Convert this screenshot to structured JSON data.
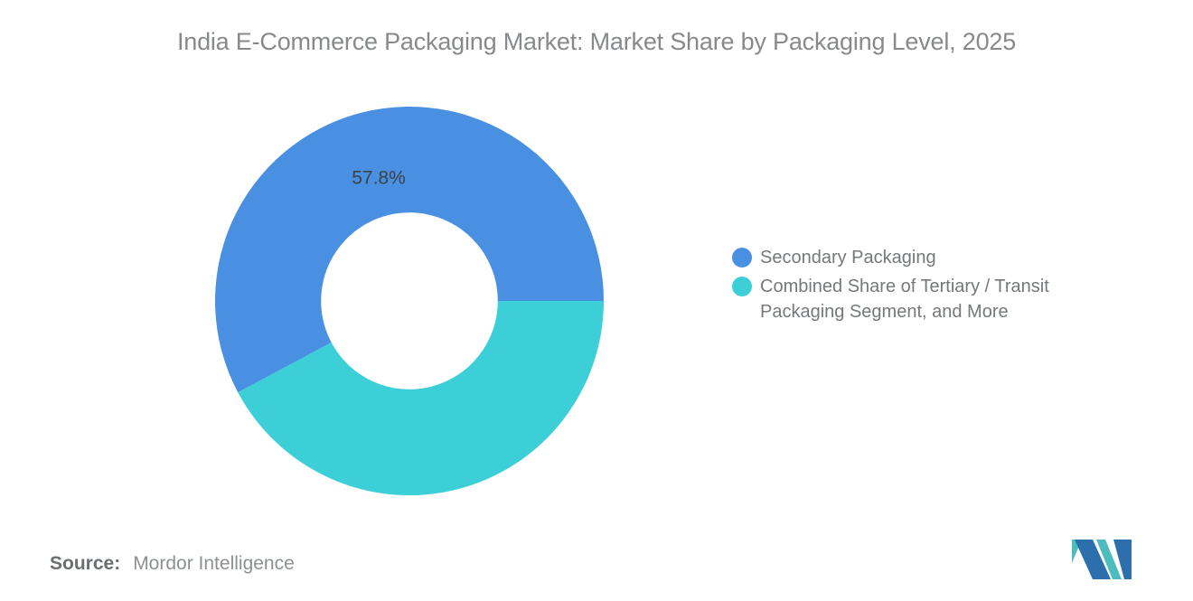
{
  "title": "India E-Commerce Packaging Market: Market Share by Packaging Level, 2025",
  "chart_data": {
    "type": "pie",
    "subtype": "donut",
    "title": "India E-Commerce Packaging Market: Market Share by Packaging Level, 2025",
    "series": [
      {
        "name": "Secondary Packaging",
        "value": 57.8,
        "label": "57.8%",
        "color": "#4a90e2"
      },
      {
        "name": "Combined Share of Tertiary / Transit Packaging Segment, and More",
        "value": 42.2,
        "label": null,
        "color": "#3ccfd8"
      }
    ],
    "start_angle_deg": 0,
    "direction": "counterclockwise",
    "inner_radius_ratio": 0.455,
    "legend_position": "right",
    "data_labels": "percent, shown on first slice only"
  },
  "legend": {
    "items": [
      {
        "label": "Secondary Packaging",
        "color": "#4a90e2"
      },
      {
        "label": "Combined Share of Tertiary / Transit Packaging Segment, and More",
        "color": "#3ccfd8"
      }
    ]
  },
  "source": {
    "label": "Source:",
    "value": "Mordor Intelligence"
  },
  "logo": {
    "name": "mordor-intelligence-logo",
    "colors": {
      "blue": "#2d6fad",
      "teal": "#4cbcbe"
    }
  },
  "colors": {
    "background": "#ffffff",
    "title_text": "#87898c",
    "legend_text": "#75787c",
    "slice_label_text": "#3e4246",
    "source_label_text": "#6b6e71",
    "source_value_text": "#8d9093"
  }
}
